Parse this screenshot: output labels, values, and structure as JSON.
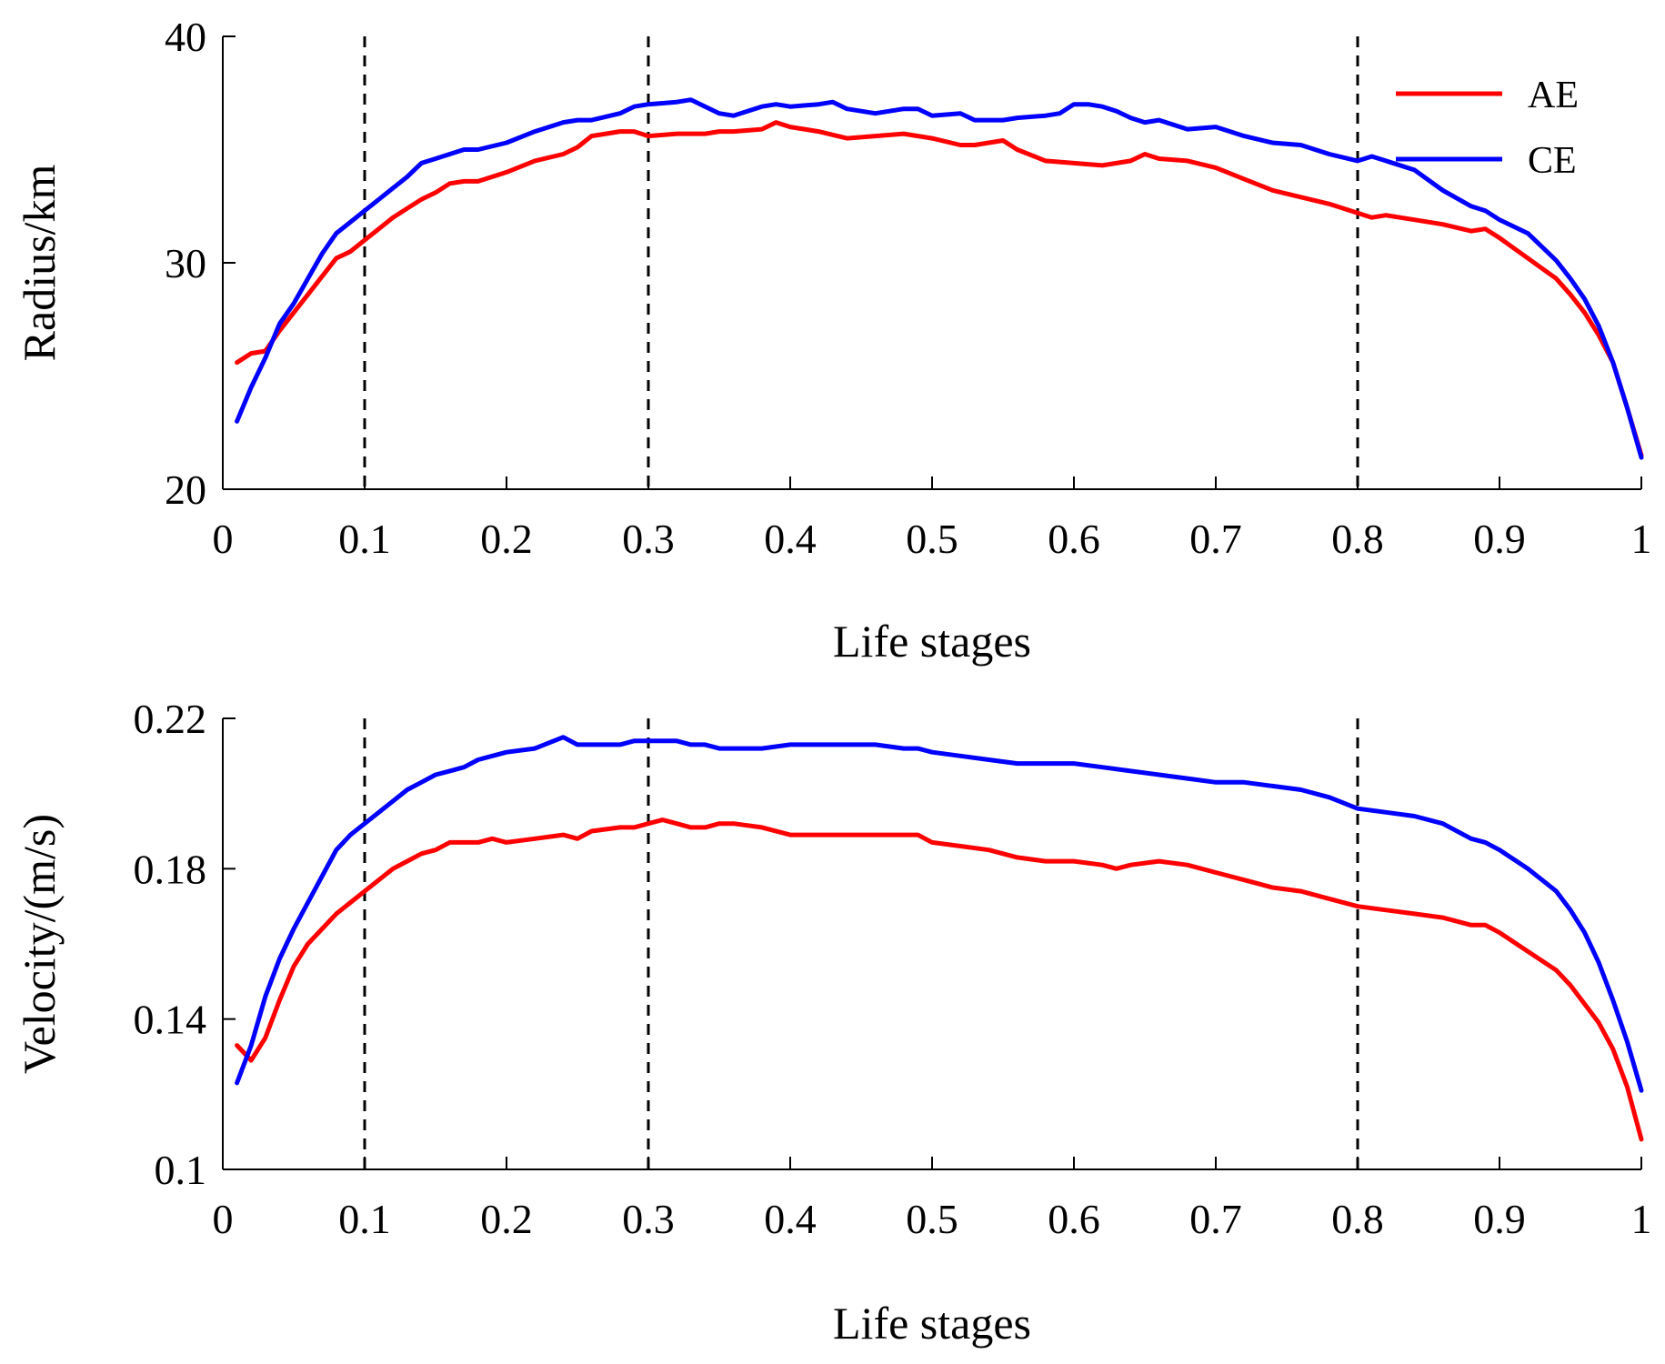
{
  "chart_data": [
    {
      "type": "line",
      "xlabel": "Life stages",
      "ylabel": "Radius/km",
      "xlim": [
        0,
        1
      ],
      "ylim": [
        20,
        40
      ],
      "xticks": [
        "0",
        "0.1",
        "0.2",
        "0.3",
        "0.4",
        "0.5",
        "0.6",
        "0.7",
        "0.8",
        "0.9",
        "1"
      ],
      "yticks": [
        "20",
        "30",
        "40"
      ],
      "legend_position": "top-right",
      "reference_lines_x": [
        0.1,
        0.3,
        0.8
      ],
      "series": [
        {
          "name": "AE",
          "color": "#ff0000",
          "x": [
            0.01,
            0.02,
            0.03,
            0.04,
            0.05,
            0.06,
            0.07,
            0.08,
            0.09,
            0.1,
            0.11,
            0.12,
            0.13,
            0.14,
            0.15,
            0.16,
            0.17,
            0.18,
            0.19,
            0.2,
            0.22,
            0.24,
            0.25,
            0.26,
            0.28,
            0.29,
            0.3,
            0.32,
            0.34,
            0.35,
            0.36,
            0.38,
            0.39,
            0.4,
            0.42,
            0.44,
            0.46,
            0.48,
            0.5,
            0.52,
            0.53,
            0.55,
            0.56,
            0.58,
            0.6,
            0.62,
            0.64,
            0.65,
            0.66,
            0.68,
            0.7,
            0.72,
            0.74,
            0.76,
            0.78,
            0.8,
            0.81,
            0.82,
            0.84,
            0.86,
            0.88,
            0.89,
            0.9,
            0.92,
            0.94,
            0.95,
            0.96,
            0.97,
            0.98,
            0.99,
            1.0
          ],
          "values": [
            25.6,
            26.0,
            26.1,
            27.0,
            27.8,
            28.6,
            29.4,
            30.2,
            30.5,
            31.0,
            31.5,
            32.0,
            32.4,
            32.8,
            33.1,
            33.5,
            33.6,
            33.6,
            33.8,
            34.0,
            34.5,
            34.8,
            35.1,
            35.6,
            35.8,
            35.8,
            35.6,
            35.7,
            35.7,
            35.8,
            35.8,
            35.9,
            36.2,
            36.0,
            35.8,
            35.5,
            35.6,
            35.7,
            35.5,
            35.2,
            35.2,
            35.4,
            35.0,
            34.5,
            34.4,
            34.3,
            34.5,
            34.8,
            34.6,
            34.5,
            34.2,
            33.7,
            33.2,
            32.9,
            32.6,
            32.2,
            32.0,
            32.1,
            31.9,
            31.7,
            31.4,
            31.5,
            31.1,
            30.2,
            29.3,
            28.6,
            27.8,
            26.8,
            25.6,
            23.6,
            21.5
          ]
        },
        {
          "name": "CE",
          "color": "#0000ff",
          "x": [
            0.01,
            0.02,
            0.03,
            0.04,
            0.05,
            0.06,
            0.07,
            0.08,
            0.09,
            0.1,
            0.11,
            0.12,
            0.13,
            0.14,
            0.15,
            0.16,
            0.17,
            0.18,
            0.2,
            0.22,
            0.24,
            0.25,
            0.26,
            0.28,
            0.29,
            0.3,
            0.32,
            0.33,
            0.34,
            0.35,
            0.36,
            0.38,
            0.39,
            0.4,
            0.42,
            0.43,
            0.44,
            0.46,
            0.48,
            0.49,
            0.5,
            0.52,
            0.53,
            0.55,
            0.56,
            0.58,
            0.59,
            0.6,
            0.61,
            0.62,
            0.63,
            0.64,
            0.65,
            0.66,
            0.68,
            0.7,
            0.72,
            0.74,
            0.76,
            0.78,
            0.8,
            0.81,
            0.82,
            0.84,
            0.86,
            0.88,
            0.89,
            0.9,
            0.92,
            0.94,
            0.95,
            0.96,
            0.97,
            0.98,
            0.99,
            1.0
          ],
          "values": [
            23.0,
            24.5,
            25.8,
            27.3,
            28.2,
            29.3,
            30.4,
            31.3,
            31.8,
            32.3,
            32.8,
            33.3,
            33.8,
            34.4,
            34.6,
            34.8,
            35.0,
            35.0,
            35.3,
            35.8,
            36.2,
            36.3,
            36.3,
            36.6,
            36.9,
            37.0,
            37.1,
            37.2,
            36.9,
            36.6,
            36.5,
            36.9,
            37.0,
            36.9,
            37.0,
            37.1,
            36.8,
            36.6,
            36.8,
            36.8,
            36.5,
            36.6,
            36.3,
            36.3,
            36.4,
            36.5,
            36.6,
            37.0,
            37.0,
            36.9,
            36.7,
            36.4,
            36.2,
            36.3,
            35.9,
            36.0,
            35.6,
            35.3,
            35.2,
            34.8,
            34.5,
            34.7,
            34.5,
            34.1,
            33.2,
            32.5,
            32.3,
            31.9,
            31.3,
            30.1,
            29.3,
            28.4,
            27.2,
            25.6,
            23.6,
            21.4
          ]
        }
      ]
    },
    {
      "type": "line",
      "xlabel": "Life stages",
      "ylabel": "Velocity/(m/s)",
      "xlim": [
        0,
        1
      ],
      "ylim": [
        0.1,
        0.22
      ],
      "xticks": [
        "0",
        "0.1",
        "0.2",
        "0.3",
        "0.4",
        "0.5",
        "0.6",
        "0.7",
        "0.8",
        "0.9",
        "1"
      ],
      "yticks": [
        "0.1",
        "0.14",
        "0.18",
        "0.22"
      ],
      "reference_lines_x": [
        0.1,
        0.3,
        0.8
      ],
      "series": [
        {
          "name": "AE",
          "color": "#ff0000",
          "x": [
            0.01,
            0.02,
            0.03,
            0.04,
            0.05,
            0.06,
            0.07,
            0.08,
            0.09,
            0.1,
            0.11,
            0.12,
            0.13,
            0.14,
            0.15,
            0.16,
            0.17,
            0.18,
            0.19,
            0.2,
            0.22,
            0.24,
            0.25,
            0.26,
            0.28,
            0.29,
            0.3,
            0.31,
            0.32,
            0.33,
            0.34,
            0.35,
            0.36,
            0.38,
            0.4,
            0.42,
            0.44,
            0.46,
            0.48,
            0.49,
            0.5,
            0.52,
            0.54,
            0.56,
            0.58,
            0.6,
            0.62,
            0.63,
            0.64,
            0.66,
            0.68,
            0.7,
            0.72,
            0.74,
            0.76,
            0.78,
            0.8,
            0.82,
            0.84,
            0.86,
            0.88,
            0.89,
            0.9,
            0.92,
            0.94,
            0.95,
            0.96,
            0.97,
            0.98,
            0.99,
            1.0
          ],
          "values": [
            0.133,
            0.129,
            0.135,
            0.145,
            0.154,
            0.16,
            0.164,
            0.168,
            0.171,
            0.174,
            0.177,
            0.18,
            0.182,
            0.184,
            0.185,
            0.187,
            0.187,
            0.187,
            0.188,
            0.187,
            0.188,
            0.189,
            0.188,
            0.19,
            0.191,
            0.191,
            0.192,
            0.193,
            0.192,
            0.191,
            0.191,
            0.192,
            0.192,
            0.191,
            0.189,
            0.189,
            0.189,
            0.189,
            0.189,
            0.189,
            0.187,
            0.186,
            0.185,
            0.183,
            0.182,
            0.182,
            0.181,
            0.18,
            0.181,
            0.182,
            0.181,
            0.179,
            0.177,
            0.175,
            0.174,
            0.172,
            0.17,
            0.169,
            0.168,
            0.167,
            0.165,
            0.165,
            0.163,
            0.158,
            0.153,
            0.149,
            0.144,
            0.139,
            0.132,
            0.122,
            0.108
          ]
        },
        {
          "name": "CE",
          "color": "#0000ff",
          "x": [
            0.01,
            0.02,
            0.03,
            0.04,
            0.05,
            0.06,
            0.07,
            0.08,
            0.09,
            0.1,
            0.11,
            0.12,
            0.13,
            0.14,
            0.15,
            0.16,
            0.17,
            0.18,
            0.19,
            0.2,
            0.22,
            0.24,
            0.25,
            0.26,
            0.28,
            0.29,
            0.3,
            0.31,
            0.32,
            0.33,
            0.34,
            0.35,
            0.36,
            0.38,
            0.4,
            0.42,
            0.44,
            0.46,
            0.48,
            0.49,
            0.5,
            0.52,
            0.54,
            0.56,
            0.58,
            0.6,
            0.62,
            0.64,
            0.66,
            0.68,
            0.7,
            0.72,
            0.74,
            0.76,
            0.78,
            0.8,
            0.82,
            0.84,
            0.86,
            0.88,
            0.89,
            0.9,
            0.92,
            0.94,
            0.95,
            0.96,
            0.97,
            0.98,
            0.99,
            1.0
          ],
          "values": [
            0.123,
            0.133,
            0.146,
            0.156,
            0.164,
            0.171,
            0.178,
            0.185,
            0.189,
            0.192,
            0.195,
            0.198,
            0.201,
            0.203,
            0.205,
            0.206,
            0.207,
            0.209,
            0.21,
            0.211,
            0.212,
            0.215,
            0.213,
            0.213,
            0.213,
            0.214,
            0.214,
            0.214,
            0.214,
            0.213,
            0.213,
            0.212,
            0.212,
            0.212,
            0.213,
            0.213,
            0.213,
            0.213,
            0.212,
            0.212,
            0.211,
            0.21,
            0.209,
            0.208,
            0.208,
            0.208,
            0.207,
            0.206,
            0.205,
            0.204,
            0.203,
            0.203,
            0.202,
            0.201,
            0.199,
            0.196,
            0.195,
            0.194,
            0.192,
            0.188,
            0.187,
            0.185,
            0.18,
            0.174,
            0.169,
            0.163,
            0.155,
            0.145,
            0.134,
            0.121
          ]
        }
      ]
    }
  ],
  "legend": {
    "items": [
      {
        "label": "AE",
        "color": "#ff0000"
      },
      {
        "label": "CE",
        "color": "#0000ff"
      }
    ]
  }
}
